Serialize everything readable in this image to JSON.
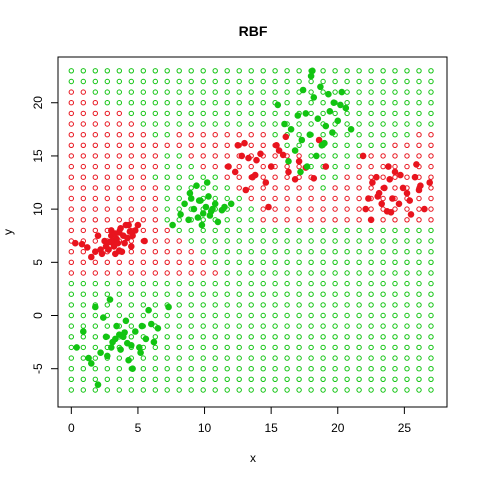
{
  "chart_data": {
    "type": "scatter",
    "title": "RBF",
    "xlabel": "x",
    "ylabel": "y",
    "xlim": [
      -1,
      28.2
    ],
    "ylim": [
      -8.6,
      24.3
    ],
    "xticks": [
      0,
      5,
      10,
      15,
      20,
      25
    ],
    "yticks": [
      -5,
      0,
      5,
      10,
      15,
      20
    ],
    "grid": false,
    "legend": "none",
    "colors": {
      "red": "#e8141e",
      "green": "#12c412"
    },
    "series": [
      {
        "kind": "decision-grid",
        "x_start": 0,
        "x_end": 27,
        "x_step": 0.9,
        "y_start": -7,
        "y_end": 23,
        "y_step": 1,
        "rule": "rbf-regions",
        "marker": "open-circle"
      },
      {
        "kind": "training-red",
        "marker": "filled-circle",
        "x": [
          0.3,
          0.8,
          1.5,
          1.8,
          2.0,
          2.3,
          2.5,
          2.6,
          2.8,
          3.0,
          3.0,
          3.1,
          3.2,
          3.3,
          3.4,
          3.5,
          3.6,
          3.7,
          3.8,
          3.9,
          4.0,
          4.1,
          4.2,
          4.3,
          4.5,
          4.6,
          4.8,
          5.0,
          5.5,
          2.2,
          3.3,
          2.9,
          3.6,
          4.4,
          1.2,
          11.8,
          12.3,
          12.8,
          13.0,
          13.3,
          13.6,
          13.9,
          14.2,
          14.6,
          15.0,
          15.4,
          15.9,
          16.3,
          16.8,
          17.1,
          17.6,
          18.2,
          18.6,
          19.1,
          13.1,
          14.8,
          16.1,
          12.5,
          13.8,
          15.6,
          21.9,
          22.3,
          22.6,
          22.9,
          23.1,
          23.3,
          23.5,
          23.7,
          23.9,
          24.1,
          24.3,
          24.6,
          24.9,
          25.2,
          25.5,
          25.8,
          26.1,
          26.5,
          26.9,
          22.5,
          23.8,
          24.7,
          25.4,
          26.2,
          23.0,
          22.1,
          24.0,
          25.9
        ],
        "y": [
          6.8,
          6.7,
          5.5,
          6.0,
          7.5,
          5.8,
          7.0,
          6.5,
          6.2,
          7.5,
          8.0,
          7.0,
          6.5,
          5.8,
          7.2,
          6.8,
          7.8,
          8.2,
          6.0,
          7.5,
          6.8,
          8.5,
          7.3,
          8.5,
          6.5,
          7.5,
          8.0,
          8.5,
          7.0,
          6.2,
          7.7,
          6.9,
          6.1,
          7.9,
          6.4,
          14.0,
          13.5,
          15.0,
          16.2,
          14.8,
          13.0,
          14.6,
          15.2,
          12.5,
          14.0,
          16.0,
          15.1,
          13.5,
          12.8,
          14.5,
          13.9,
          12.9,
          16.5,
          14.0,
          11.8,
          10.2,
          16.8,
          16.0,
          13.2,
          15.5,
          15.0,
          11.0,
          12.5,
          13.0,
          11.5,
          10.5,
          12.0,
          9.8,
          12.8,
          11.0,
          13.5,
          10.5,
          12.0,
          11.5,
          9.5,
          13.0,
          11.8,
          10.0,
          12.5,
          9.0,
          14.0,
          13.2,
          10.8,
          12.2,
          11.2,
          10.0,
          9.7,
          14.2
        ]
      },
      {
        "kind": "training-green",
        "marker": "filled-circle",
        "x": [
          0.4,
          0.9,
          1.3,
          1.8,
          2.2,
          2.6,
          2.9,
          3.1,
          3.4,
          3.7,
          3.9,
          4.1,
          4.3,
          4.5,
          4.8,
          5.1,
          5.3,
          5.6,
          6.0,
          6.2,
          2.0,
          2.7,
          3.3,
          4.0,
          4.6,
          5.2,
          1.5,
          2.4,
          3.0,
          3.6,
          4.2,
          5.8,
          6.5,
          7.3,
          8.2,
          8.5,
          8.8,
          9.0,
          9.2,
          9.5,
          9.7,
          9.9,
          10.1,
          10.3,
          10.5,
          10.8,
          11.0,
          11.3,
          9.4,
          9.8,
          10.2,
          10.6,
          8.9,
          9.6,
          10.4,
          11.5,
          7.6,
          12.0,
          15.5,
          16.0,
          16.5,
          17.0,
          17.3,
          17.6,
          17.9,
          18.2,
          18.5,
          18.8,
          19.1,
          19.4,
          19.7,
          20.0,
          20.3,
          20.6,
          18.0,
          18.7,
          19.3,
          17.2,
          16.8,
          17.7,
          18.4,
          19.0,
          19.6,
          18.1,
          16.3,
          20.2,
          21.0,
          17.4
        ],
        "y": [
          -3.0,
          -1.5,
          -4.0,
          0.8,
          -3.5,
          -2.0,
          1.5,
          -2.5,
          -1.0,
          -3.2,
          -2.0,
          -0.5,
          -4.2,
          -2.8,
          -1.5,
          -3.0,
          -1.0,
          -2.2,
          -0.8,
          -2.5,
          -6.5,
          -3.8,
          -2.2,
          -1.6,
          -5.0,
          -3.5,
          -4.5,
          -0.2,
          -3.0,
          -1.8,
          -2.6,
          0.5,
          -1.2,
          0.8,
          9.5,
          10.5,
          9.0,
          11.0,
          10.0,
          9.2,
          10.8,
          9.6,
          10.2,
          11.2,
          9.8,
          10.5,
          8.8,
          9.9,
          12.2,
          8.5,
          12.5,
          10.0,
          11.5,
          10.8,
          9.4,
          10.2,
          8.5,
          10.5,
          19.8,
          18.0,
          17.5,
          18.8,
          16.5,
          19.0,
          17.0,
          20.5,
          18.5,
          16.0,
          17.8,
          19.2,
          20.0,
          18.3,
          21.0,
          19.5,
          22.5,
          21.5,
          20.8,
          13.5,
          15.5,
          14.0,
          15.0,
          16.2,
          17.2,
          23.0,
          14.5,
          19.8,
          17.5,
          21.2
        ]
      }
    ]
  }
}
